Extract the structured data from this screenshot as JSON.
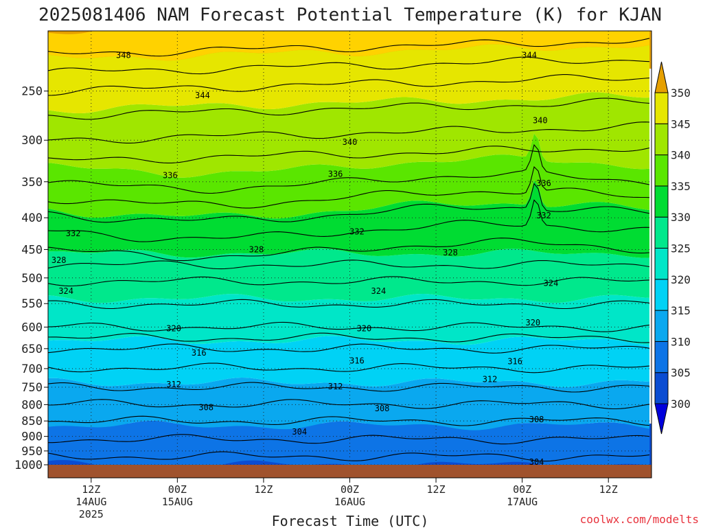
{
  "chart_data": {
    "type": "heatmap",
    "title": "2025081406 NAM Forecast Potential Temperature (K) for KJAN",
    "xlabel": "Forecast Time (UTC)",
    "ylabel": "",
    "credit": "coolwx.com/modelts",
    "y_axis": {
      "scale": "log-pressure",
      "range": [
        1000,
        200
      ],
      "ticks": [
        250,
        300,
        350,
        400,
        450,
        500,
        550,
        600,
        650,
        700,
        750,
        800,
        850,
        900,
        950,
        1000
      ]
    },
    "x_axis": {
      "range_hours": [
        0,
        84
      ],
      "ticks": [
        {
          "hour": 6,
          "label": "12Z",
          "date": "14AUG",
          "year": "2025"
        },
        {
          "hour": 18,
          "label": "00Z",
          "date": "15AUG",
          "year": ""
        },
        {
          "hour": 30,
          "label": "12Z",
          "date": "",
          "year": ""
        },
        {
          "hour": 42,
          "label": "00Z",
          "date": "16AUG",
          "year": ""
        },
        {
          "hour": 54,
          "label": "12Z",
          "date": "",
          "year": ""
        },
        {
          "hour": 66,
          "label": "00Z",
          "date": "17AUG",
          "year": ""
        },
        {
          "hour": 78,
          "label": "12Z",
          "date": "",
          "year": ""
        }
      ]
    },
    "colorbar": {
      "levels": [
        300,
        305,
        310,
        315,
        320,
        325,
        330,
        335,
        340,
        345,
        350
      ],
      "colors": [
        "#0000dc",
        "#0a4cd2",
        "#0d74e6",
        "#0aa8ef",
        "#00d2f5",
        "#00e6c8",
        "#00e88c",
        "#00dc32",
        "#5ae600",
        "#a0e600",
        "#e6e600",
        "#ffd200",
        "#e6a000"
      ],
      "extend": "both"
    },
    "grid": true,
    "contour_interval": 2,
    "contour_labels": [
      {
        "hour": 10.5,
        "p": 219,
        "value": 348
      },
      {
        "hour": 67.0,
        "p": 219,
        "value": 344
      },
      {
        "hour": 21.5,
        "p": 254,
        "value": 344
      },
      {
        "hour": 68.5,
        "p": 279,
        "value": 340
      },
      {
        "hour": 42.0,
        "p": 302,
        "value": 340
      },
      {
        "hour": 17.0,
        "p": 342,
        "value": 336
      },
      {
        "hour": 40.0,
        "p": 340,
        "value": 336
      },
      {
        "hour": 69.0,
        "p": 352,
        "value": 336
      },
      {
        "hour": 3.5,
        "p": 424,
        "value": 332
      },
      {
        "hour": 43.0,
        "p": 421,
        "value": 332
      },
      {
        "hour": 69.0,
        "p": 397,
        "value": 332
      },
      {
        "hour": 1.5,
        "p": 468,
        "value": 328
      },
      {
        "hour": 29.0,
        "p": 450,
        "value": 328
      },
      {
        "hour": 56.0,
        "p": 455,
        "value": 328
      },
      {
        "hour": 2.5,
        "p": 525,
        "value": 324
      },
      {
        "hour": 46.0,
        "p": 525,
        "value": 324
      },
      {
        "hour": 70.0,
        "p": 510,
        "value": 324
      },
      {
        "hour": 17.5,
        "p": 603,
        "value": 320
      },
      {
        "hour": 44.0,
        "p": 603,
        "value": 320
      },
      {
        "hour": 67.5,
        "p": 590,
        "value": 320
      },
      {
        "hour": 21.0,
        "p": 660,
        "value": 316
      },
      {
        "hour": 43.0,
        "p": 680,
        "value": 316
      },
      {
        "hour": 65.0,
        "p": 682,
        "value": 316
      },
      {
        "hour": 17.5,
        "p": 742,
        "value": 312
      },
      {
        "hour": 40.0,
        "p": 748,
        "value": 312
      },
      {
        "hour": 61.5,
        "p": 728,
        "value": 312
      },
      {
        "hour": 22.0,
        "p": 808,
        "value": 308
      },
      {
        "hour": 46.5,
        "p": 812,
        "value": 308
      },
      {
        "hour": 68.0,
        "p": 845,
        "value": 308
      },
      {
        "hour": 35.0,
        "p": 885,
        "value": 304
      },
      {
        "hour": 68.0,
        "p": 990,
        "value": 304
      }
    ]
  }
}
